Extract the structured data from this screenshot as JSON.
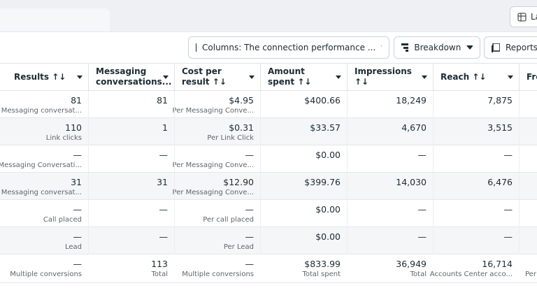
{
  "top_bar": {
    "layout_button": "La"
  },
  "toolbar": {
    "columns_button": "Columns: The connection performance ...",
    "breakdown_button": "Breakdown",
    "reports_button": "Reports"
  },
  "table": {
    "headers": [
      "Results ↑↓",
      "Messaging conversations...",
      "Cost per result ↑↓",
      "Amount spent ↑↓",
      "Impressions ↑↓",
      "Reach ↑↓",
      "Fre"
    ],
    "rows": [
      [
        {
          "value": "81",
          "label": "Messaging conversat..."
        },
        {
          "value": "81"
        },
        {
          "value": "$4.95",
          "label": "Per Messaging Conve..."
        },
        {
          "value": "$400.66"
        },
        {
          "value": "18,249"
        },
        {
          "value": "7,875"
        }
      ],
      [
        {
          "value": "110",
          "label": "Link clicks"
        },
        {
          "value": "1"
        },
        {
          "value": "$0.31",
          "label": "Per Link Click"
        },
        {
          "value": "$33.57"
        },
        {
          "value": "4,670"
        },
        {
          "value": "3,515"
        }
      ],
      [
        {
          "value": "—",
          "label": "Messaging Conversati..."
        },
        {
          "value": "—"
        },
        {
          "value": "—",
          "label": "Per Messaging Conve..."
        },
        {
          "value": "$0.00"
        },
        {
          "value": "—"
        },
        {
          "value": "—"
        }
      ],
      [
        {
          "value": "31",
          "label": "Messaging conversat..."
        },
        {
          "value": "31"
        },
        {
          "value": "$12.90",
          "label": "Per Messaging Conve..."
        },
        {
          "value": "$399.76"
        },
        {
          "value": "14,030"
        },
        {
          "value": "6,476"
        }
      ],
      [
        {
          "value": "—",
          "label": "Call placed"
        },
        {
          "value": "—"
        },
        {
          "value": "—",
          "label": "Per call placed"
        },
        {
          "value": "$0.00"
        },
        {
          "value": "—"
        },
        {
          "value": "—"
        }
      ],
      [
        {
          "value": "—",
          "label": "Lead"
        },
        {
          "value": "—"
        },
        {
          "value": "—",
          "label": "Per Lead"
        },
        {
          "value": "$0.00"
        },
        {
          "value": "—"
        },
        {
          "value": "—"
        }
      ]
    ],
    "totals": [
      {
        "value": "—",
        "label": "Multiple conversions"
      },
      {
        "value": "113",
        "label": "Total"
      },
      {
        "value": "—",
        "label": "Multiple conversions"
      },
      {
        "value": "$833.99",
        "label": "Total spent"
      },
      {
        "value": "36,949",
        "label": "Total"
      },
      {
        "value": "16,714",
        "label": "Accounts Center acco..."
      },
      {
        "label": "Per"
      }
    ]
  }
}
